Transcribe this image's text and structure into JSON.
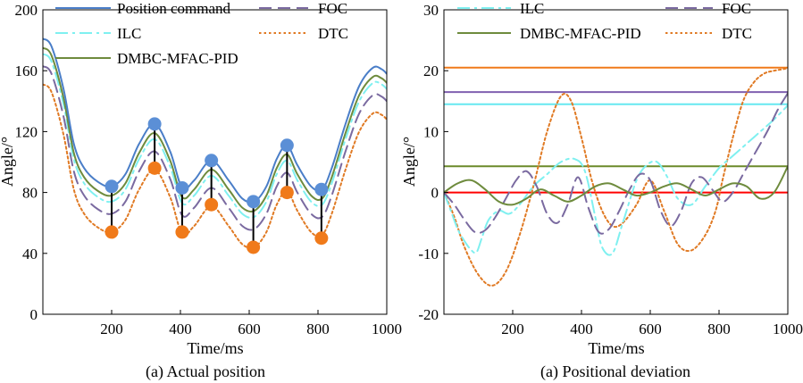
{
  "figure": {
    "colors": {
      "position_command": "#4a7ec8",
      "ilc": "#7ff0f0",
      "dmbc": "#6e8b3d",
      "foc": "#7a6aa0",
      "dtc": "#e07a24",
      "zero": "#ff0000",
      "marker_blue": "#5b8fd6",
      "marker_orange": "#f07a1a",
      "hline_orange": "#f07a1a",
      "hline_purple": "#8060b0",
      "hline_cyan": "#66e8f0",
      "hline_green": "#6b8a2a"
    }
  },
  "chart_data": [
    {
      "id": "actual-position",
      "type": "line",
      "caption": "(a) Actual position",
      "xlabel": "Time/ms",
      "ylabel": "Angle/°",
      "xlim": [
        0,
        1000
      ],
      "ylim": [
        0,
        200
      ],
      "xticks": [
        200,
        400,
        600,
        800,
        1000
      ],
      "yticks": [
        0,
        40,
        80,
        120,
        160,
        200
      ],
      "legend": [
        {
          "name": "Position command",
          "style": "solid",
          "color_key": "position_command"
        },
        {
          "name": "ILC",
          "style": "dashdot",
          "color_key": "ilc"
        },
        {
          "name": "DMBC-MFAC-PID",
          "style": "solid",
          "color_key": "dmbc"
        },
        {
          "name": "FOC",
          "style": "dash",
          "color_key": "foc"
        },
        {
          "name": "DTC",
          "style": "dot",
          "color_key": "dtc"
        }
      ],
      "series": [
        {
          "name": "Position command",
          "offset": 0
        },
        {
          "name": "DMBC-MFAC-PID",
          "offset": -6
        },
        {
          "name": "ILC",
          "offset": -10
        },
        {
          "name": "FOC",
          "offset": -18
        },
        {
          "name": "DTC",
          "offset": -30
        }
      ],
      "base_curve": {
        "x": [
          0,
          25,
          60,
          90,
          120,
          160,
          200,
          240,
          280,
          325,
          370,
          405,
          440,
          490,
          540,
          580,
          615,
          650,
          680,
          710,
          740,
          780,
          812,
          840,
          880,
          920,
          960,
          985,
          1000
        ],
        "y": [
          181,
          176,
          148,
          112,
          96,
          87,
          84,
          92,
          112,
          125,
          107,
          83,
          88,
          101,
          88,
          76,
          74,
          84,
          102,
          111,
          98,
          84,
          82,
          96,
          125,
          150,
          162,
          161,
          158
        ]
      },
      "markers_top": {
        "x": [
          200,
          325,
          405,
          490,
          612,
          710,
          810
        ],
        "y": [
          84,
          125,
          83,
          101,
          74,
          111,
          82
        ]
      },
      "markers_bottom": {
        "x": [
          200,
          325,
          405,
          490,
          612,
          710,
          810
        ],
        "y": [
          54,
          96,
          54,
          72,
          44,
          80,
          50
        ]
      }
    },
    {
      "id": "positional-deviation",
      "type": "line",
      "caption": "(a) Positional deviation",
      "xlabel": "Time/ms",
      "ylabel": "Angle/°",
      "xlim": [
        0,
        1000
      ],
      "ylim": [
        -20,
        30
      ],
      "xticks": [
        200,
        400,
        600,
        800,
        1000
      ],
      "yticks": [
        -20,
        -10,
        0,
        10,
        20,
        30
      ],
      "legend": [
        {
          "name": "ILC",
          "style": "dashdot",
          "color_key": "ilc"
        },
        {
          "name": "FOC",
          "style": "dash",
          "color_key": "foc"
        },
        {
          "name": "DMBC-MFAC-PID",
          "style": "solid",
          "color_key": "dmbc"
        },
        {
          "name": "DTC",
          "style": "dot",
          "color_key": "dtc"
        }
      ],
      "hlines": [
        {
          "y": 20.5,
          "color_key": "hline_orange"
        },
        {
          "y": 16.5,
          "color_key": "hline_purple"
        },
        {
          "y": 14.5,
          "color_key": "hline_cyan"
        },
        {
          "y": 4.3,
          "color_key": "hline_green"
        },
        {
          "y": 0,
          "color_key": "zero"
        }
      ],
      "series": [
        {
          "name": "DTC",
          "x": [
            0,
            30,
            60,
            100,
            140,
            180,
            220,
            260,
            300,
            340,
            370,
            400,
            430,
            460,
            490,
            520,
            560,
            600,
            640,
            680,
            720,
            760,
            790,
            810,
            840,
            870,
            900,
            930,
            960,
            990,
            1000
          ],
          "y": [
            0,
            -4,
            -9,
            -13.5,
            -15.3,
            -13,
            -7,
            1,
            10,
            15.8,
            15,
            9,
            2,
            -3,
            -5.5,
            -5,
            -2,
            2,
            -3,
            -8.5,
            -9.5,
            -7,
            -3,
            2,
            9,
            15,
            18,
            19.5,
            20,
            20.3,
            20.5
          ]
        },
        {
          "name": "ILC",
          "x": [
            0,
            20,
            40,
            60,
            80,
            95,
            110,
            130,
            160,
            190,
            220,
            260,
            300,
            340,
            380,
            410,
            440,
            460,
            490,
            520,
            560,
            590,
            620,
            650,
            680,
            720,
            760,
            800,
            840,
            880,
            920,
            960,
            1000
          ],
          "y": [
            0,
            -3,
            -6,
            -8,
            -9.5,
            -9.8,
            -7.5,
            -4.5,
            -3,
            -3.5,
            -2,
            1,
            3,
            5,
            5.5,
            3.5,
            -4,
            -9,
            -10,
            -5,
            2,
            4.5,
            5,
            2.5,
            -1,
            -2,
            1,
            4,
            6,
            8,
            10,
            12,
            14.3
          ]
        },
        {
          "name": "FOC",
          "x": [
            0,
            30,
            60,
            90,
            120,
            150,
            180,
            210,
            240,
            270,
            300,
            330,
            360,
            390,
            420,
            450,
            480,
            510,
            540,
            570,
            600,
            630,
            660,
            690,
            720,
            750,
            780,
            810,
            840,
            870,
            900,
            940,
            970,
            1000
          ],
          "y": [
            0,
            -2,
            -4.5,
            -6.5,
            -6.2,
            -4,
            -1,
            2,
            3.5,
            1,
            -3.5,
            -5,
            -2,
            2.5,
            -2.5,
            -6.5,
            -6,
            -3,
            0.5,
            3,
            2,
            -3,
            -5.5,
            -3,
            1.5,
            2.5,
            0.5,
            -1.5,
            0,
            3,
            6,
            10,
            13.5,
            16.3
          ]
        },
        {
          "name": "DMBC-MFAC-PID",
          "x": [
            0,
            40,
            80,
            120,
            160,
            200,
            240,
            280,
            320,
            360,
            400,
            440,
            480,
            520,
            560,
            600,
            640,
            680,
            720,
            760,
            800,
            840,
            880,
            920,
            960,
            1000
          ],
          "y": [
            0,
            1.5,
            2,
            0.5,
            -1.5,
            -2,
            -1,
            0.5,
            -0.5,
            -1.5,
            -0.5,
            1,
            1.5,
            0.5,
            -0.5,
            0,
            1,
            1.5,
            0.5,
            -0.5,
            0.5,
            1.5,
            1,
            -1,
            0,
            4.3
          ]
        }
      ]
    }
  ]
}
